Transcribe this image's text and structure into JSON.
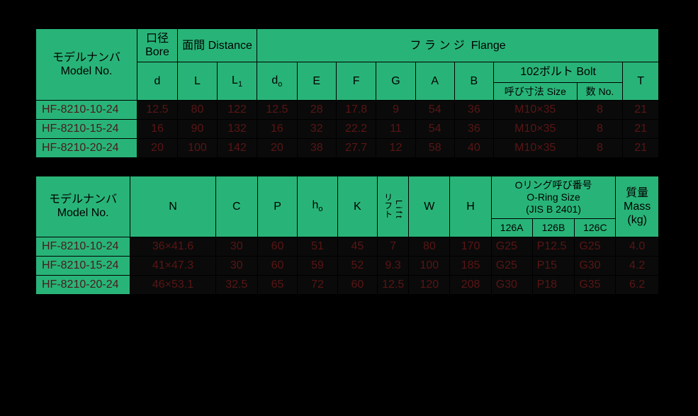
{
  "t1": {
    "h": {
      "model_jp": "モデルナンバ",
      "model_en": "Model No.",
      "bore_jp": "口径",
      "bore_en": "Bore",
      "distance_jp": "面間",
      "distance_en": "Distance",
      "flange_jp": "フ ラ ン ジ",
      "flange_en": "Flange",
      "bolt_jp": "102ボルト",
      "bolt_en": "Bolt",
      "d": "d",
      "L": "L",
      "L1": "L",
      "L1_sub": "1",
      "d0": "d",
      "d0_sub": "o",
      "E": "E",
      "F": "F",
      "G": "G",
      "A": "A",
      "B": "B",
      "size_jp": "呼び寸法",
      "size_en": "Size",
      "no_jp": "数",
      "no_en": "No.",
      "T": "T"
    },
    "rows": [
      {
        "model": "HF-8210-10-24",
        "d": "12.5",
        "L": "80",
        "L1": "122",
        "d0": "12.5",
        "E": "28",
        "F": "17.8",
        "G": "9",
        "A": "54",
        "B": "36",
        "size": "M10×35",
        "no": "8",
        "T": "21"
      },
      {
        "model": "HF-8210-15-24",
        "d": "16",
        "L": "90",
        "L1": "132",
        "d0": "16",
        "E": "32",
        "F": "22.2",
        "G": "11",
        "A": "54",
        "B": "36",
        "size": "M10×35",
        "no": "8",
        "T": "21"
      },
      {
        "model": "HF-8210-20-24",
        "d": "20",
        "L": "100",
        "L1": "142",
        "d0": "20",
        "E": "38",
        "F": "27.7",
        "G": "12",
        "A": "58",
        "B": "40",
        "size": "M10×35",
        "no": "8",
        "T": "21"
      }
    ]
  },
  "t2": {
    "h": {
      "model_jp": "モデルナンバ",
      "model_en": "Model No.",
      "N": "N",
      "C": "C",
      "P": "P",
      "h0": "h",
      "h0_sub": "o",
      "K": "K",
      "lift_jp": "リフト",
      "lift_en": "L i f t",
      "W": "W",
      "H": "H",
      "oring_jp": "Oリング呼び番号",
      "oring_en": "O-Ring Size",
      "oring_std": "(JIS B 2401)",
      "126A": "126A",
      "126B": "126B",
      "126C": "126C",
      "mass_jp": "質量",
      "mass_en": "Mass",
      "mass_unit": "(kg)"
    },
    "rows": [
      {
        "model": "HF-8210-10-24",
        "N": "36×41.6",
        "C": "30",
        "P": "60",
        "h0": "51",
        "K": "45",
        "lift": "7",
        "W": "80",
        "H": "170",
        "a": "G25",
        "b": "P12.5",
        "c": "G25",
        "mass": "4.0"
      },
      {
        "model": "HF-8210-15-24",
        "N": "41×47.3",
        "C": "30",
        "P": "60",
        "h0": "59",
        "K": "52",
        "lift": "9.3",
        "W": "100",
        "H": "185",
        "a": "G25",
        "b": "P15",
        "c": "G30",
        "mass": "4.2"
      },
      {
        "model": "HF-8210-20-24",
        "N": "46×53.1",
        "C": "32.5",
        "P": "65",
        "h0": "72",
        "K": "60",
        "lift": "12.5",
        "W": "120",
        "H": "208",
        "a": "G30",
        "b": "P18",
        "c": "G35",
        "mass": "6.2"
      }
    ]
  }
}
